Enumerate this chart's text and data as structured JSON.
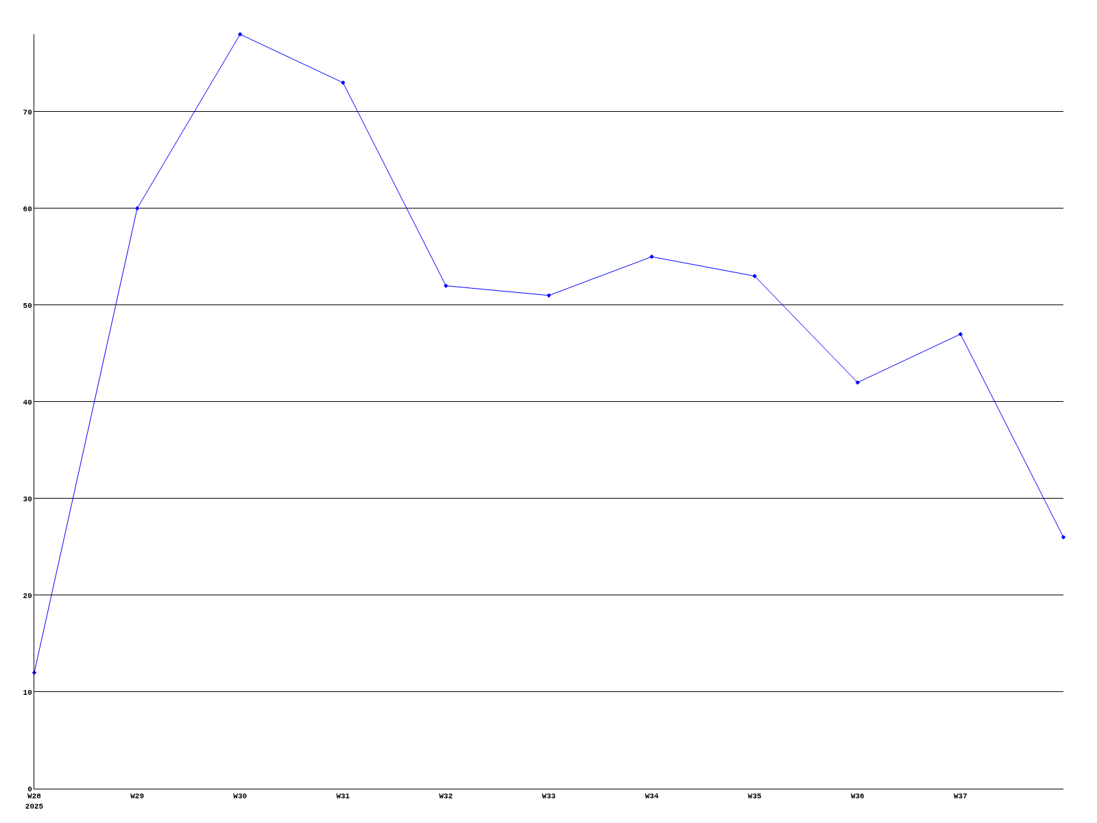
{
  "chart_data": {
    "type": "line",
    "categories": [
      "W28\n2025",
      "W29",
      "W30",
      "W31",
      "W32",
      "W33",
      "W34",
      "W35",
      "W36",
      "W37",
      null
    ],
    "series": [
      {
        "color": "#0000ff",
        "values": [
          12,
          60,
          78,
          73,
          52,
          51,
          55,
          53,
          42,
          47,
          26
        ]
      }
    ],
    "ylim": [
      0,
      78
    ],
    "yticks": [
      0,
      10,
      20,
      30,
      40,
      50,
      60,
      70
    ],
    "grid": "y",
    "marker": "diamond",
    "line_style": "solid"
  }
}
